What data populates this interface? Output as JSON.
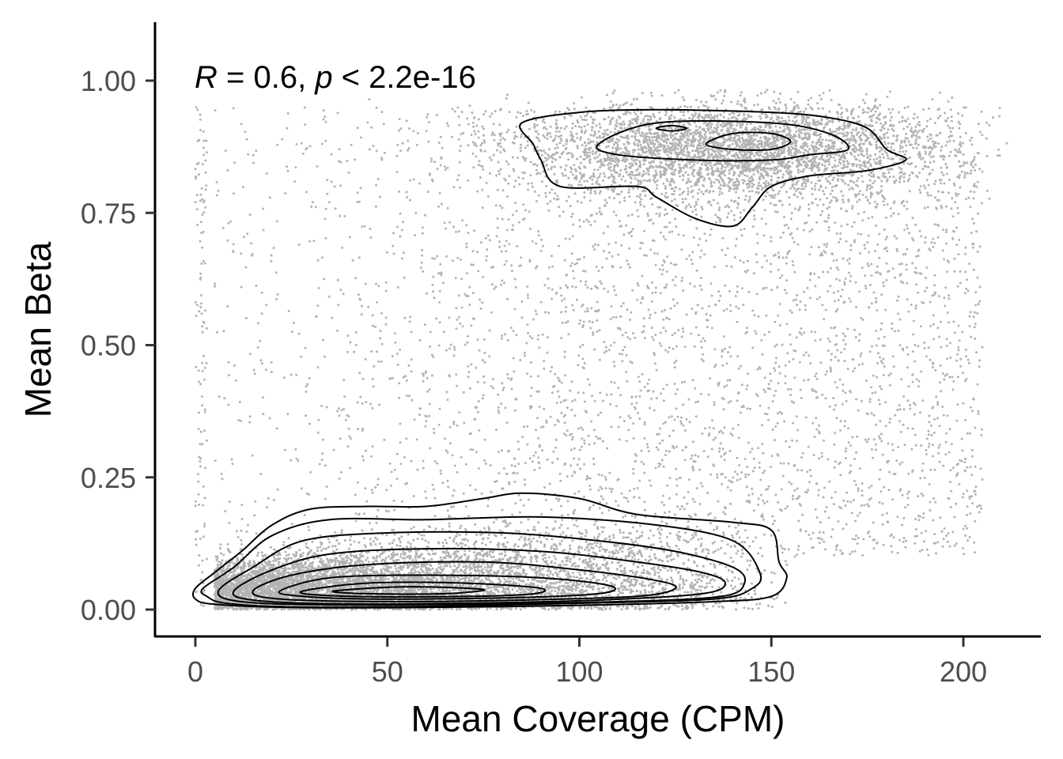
{
  "chart_data": {
    "type": "scatter",
    "title": "",
    "xlabel": "Mean Coverage (CPM)",
    "ylabel": "Mean Beta",
    "xlim": [
      -10,
      220
    ],
    "ylim": [
      -0.05,
      1.11
    ],
    "x_ticks": [
      0,
      50,
      100,
      150,
      200
    ],
    "x_tick_labels": [
      "0",
      "50",
      "100",
      "150",
      "200"
    ],
    "y_ticks": [
      0,
      0.25,
      0.5,
      0.75,
      1.0
    ],
    "y_tick_labels": [
      "0.00",
      "0.25",
      "0.50",
      "0.75",
      "1.00"
    ],
    "grid": false,
    "legend": "none",
    "point_color": "#b3b3b3",
    "contour_color": "#000000",
    "annotation": {
      "r_symbol": "R",
      "r_text": " = 0.6, ",
      "p_symbol": "p",
      "p_text": " < 2.2e-16"
    },
    "clusters": [
      {
        "center": [
          55,
          0.05
        ],
        "x_range": [
          0,
          155
        ],
        "y_range": [
          0.0,
          0.22
        ],
        "share": "dense low-beta cluster"
      },
      {
        "center": [
          140,
          0.88
        ],
        "x_range": [
          85,
          185
        ],
        "y_range": [
          0.72,
          0.97
        ],
        "share": "high-beta cluster"
      }
    ],
    "contours": [
      {
        "level": 1,
        "points": [
          [
            0,
            0.04
          ],
          [
            5,
            0.07
          ],
          [
            12,
            0.11
          ],
          [
            20,
            0.16
          ],
          [
            30,
            0.19
          ],
          [
            45,
            0.195
          ],
          [
            60,
            0.195
          ],
          [
            75,
            0.21
          ],
          [
            85,
            0.22
          ],
          [
            100,
            0.21
          ],
          [
            115,
            0.18
          ],
          [
            140,
            0.165
          ],
          [
            150,
            0.15
          ],
          [
            152,
            0.09
          ],
          [
            154,
            0.06
          ],
          [
            150,
            0.025
          ],
          [
            135,
            0.015
          ],
          [
            100,
            0.008
          ],
          [
            60,
            0.004
          ],
          [
            25,
            0.004
          ],
          [
            5,
            0.01
          ],
          [
            0,
            0.02
          ]
        ]
      },
      {
        "level": 2,
        "points": [
          [
            2,
            0.04
          ],
          [
            10,
            0.08
          ],
          [
            20,
            0.14
          ],
          [
            35,
            0.17
          ],
          [
            60,
            0.17
          ],
          [
            90,
            0.175
          ],
          [
            120,
            0.16
          ],
          [
            140,
            0.13
          ],
          [
            147,
            0.07
          ],
          [
            145,
            0.04
          ],
          [
            135,
            0.02
          ],
          [
            100,
            0.012
          ],
          [
            60,
            0.006
          ],
          [
            25,
            0.005
          ],
          [
            8,
            0.012
          ],
          [
            3,
            0.025
          ]
        ]
      },
      {
        "level": 3,
        "points": [
          [
            6,
            0.035
          ],
          [
            15,
            0.08
          ],
          [
            28,
            0.13
          ],
          [
            50,
            0.145
          ],
          [
            80,
            0.145
          ],
          [
            105,
            0.13
          ],
          [
            125,
            0.11
          ],
          [
            140,
            0.08
          ],
          [
            143,
            0.05
          ],
          [
            137,
            0.025
          ],
          [
            110,
            0.015
          ],
          [
            70,
            0.01
          ],
          [
            35,
            0.009
          ],
          [
            12,
            0.015
          ]
        ]
      },
      {
        "level": 4,
        "points": [
          [
            10,
            0.035
          ],
          [
            20,
            0.075
          ],
          [
            35,
            0.105
          ],
          [
            60,
            0.115
          ],
          [
            90,
            0.11
          ],
          [
            115,
            0.09
          ],
          [
            132,
            0.07
          ],
          [
            138,
            0.05
          ],
          [
            132,
            0.03
          ],
          [
            105,
            0.018
          ],
          [
            70,
            0.012
          ],
          [
            35,
            0.011
          ],
          [
            15,
            0.018
          ]
        ]
      },
      {
        "level": 5,
        "points": [
          [
            15,
            0.035
          ],
          [
            25,
            0.065
          ],
          [
            45,
            0.085
          ],
          [
            75,
            0.09
          ],
          [
            100,
            0.075
          ],
          [
            120,
            0.055
          ],
          [
            125,
            0.04
          ],
          [
            115,
            0.025
          ],
          [
            85,
            0.018
          ],
          [
            50,
            0.015
          ],
          [
            22,
            0.02
          ]
        ]
      },
      {
        "level": 6,
        "points": [
          [
            22,
            0.035
          ],
          [
            35,
            0.06
          ],
          [
            60,
            0.065
          ],
          [
            90,
            0.06
          ],
          [
            108,
            0.045
          ],
          [
            105,
            0.03
          ],
          [
            80,
            0.022
          ],
          [
            45,
            0.02
          ],
          [
            28,
            0.025
          ]
        ]
      },
      {
        "level": 7,
        "points": [
          [
            28,
            0.035
          ],
          [
            45,
            0.05
          ],
          [
            70,
            0.05
          ],
          [
            90,
            0.04
          ],
          [
            85,
            0.028
          ],
          [
            55,
            0.024
          ],
          [
            33,
            0.027
          ]
        ]
      },
      {
        "level": 8,
        "points": [
          [
            36,
            0.035
          ],
          [
            55,
            0.043
          ],
          [
            75,
            0.038
          ],
          [
            65,
            0.03
          ],
          [
            45,
            0.03
          ]
        ]
      },
      {
        "level": 1,
        "points": [
          [
            85,
            0.92
          ],
          [
            100,
            0.94
          ],
          [
            120,
            0.945
          ],
          [
            150,
            0.94
          ],
          [
            165,
            0.93
          ],
          [
            175,
            0.91
          ],
          [
            180,
            0.87
          ],
          [
            185,
            0.85
          ],
          [
            175,
            0.83
          ],
          [
            160,
            0.82
          ],
          [
            150,
            0.8
          ],
          [
            145,
            0.76
          ],
          [
            140,
            0.725
          ],
          [
            130,
            0.74
          ],
          [
            120,
            0.78
          ],
          [
            115,
            0.8
          ],
          [
            95,
            0.8
          ],
          [
            90,
            0.85
          ],
          [
            88,
            0.88
          ]
        ]
      },
      {
        "level": 2,
        "points": [
          [
            105,
            0.88
          ],
          [
            120,
            0.92
          ],
          [
            150,
            0.92
          ],
          [
            165,
            0.9
          ],
          [
            170,
            0.87
          ],
          [
            160,
            0.86
          ],
          [
            150,
            0.85
          ],
          [
            130,
            0.85
          ],
          [
            110,
            0.86
          ]
        ]
      },
      {
        "level": 3,
        "points": [
          [
            133,
            0.88
          ],
          [
            140,
            0.9
          ],
          [
            150,
            0.9
          ],
          [
            155,
            0.885
          ],
          [
            150,
            0.87
          ],
          [
            140,
            0.87
          ]
        ]
      },
      {
        "level": 4,
        "points": [
          [
            120,
            0.91
          ],
          [
            124,
            0.915
          ],
          [
            128,
            0.91
          ],
          [
            124,
            0.905
          ]
        ]
      }
    ]
  }
}
